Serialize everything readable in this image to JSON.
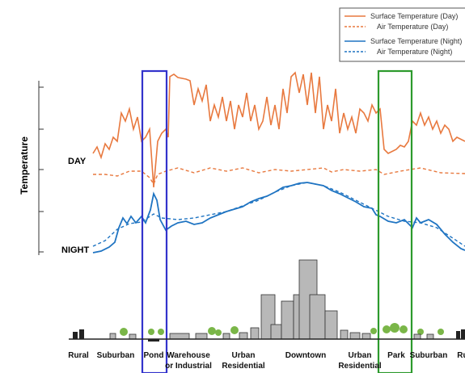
{
  "legend": {
    "items": [
      "Surface Temperature (Day)",
      "Air Temperature  (Day)",
      "Surface Temperature (Night)",
      "Air Temperature (Night)"
    ]
  },
  "axis": {
    "y_label": "Temperature"
  },
  "labels": {
    "day": "DAY",
    "night": "NIGHT"
  },
  "zones": [
    {
      "lines": [
        "Rural"
      ]
    },
    {
      "lines": [
        "Suburban"
      ]
    },
    {
      "lines": [
        "Pond"
      ]
    },
    {
      "lines": [
        "Warehouse",
        "or Industrial"
      ]
    },
    {
      "lines": [
        "Urban",
        "Residential"
      ]
    },
    {
      "lines": [
        "Downtown"
      ]
    },
    {
      "lines": [
        "Urban",
        "Residential"
      ]
    },
    {
      "lines": [
        "Park"
      ]
    },
    {
      "lines": [
        "Suburban"
      ]
    },
    {
      "lines": [
        "Rural"
      ]
    }
  ]
}
